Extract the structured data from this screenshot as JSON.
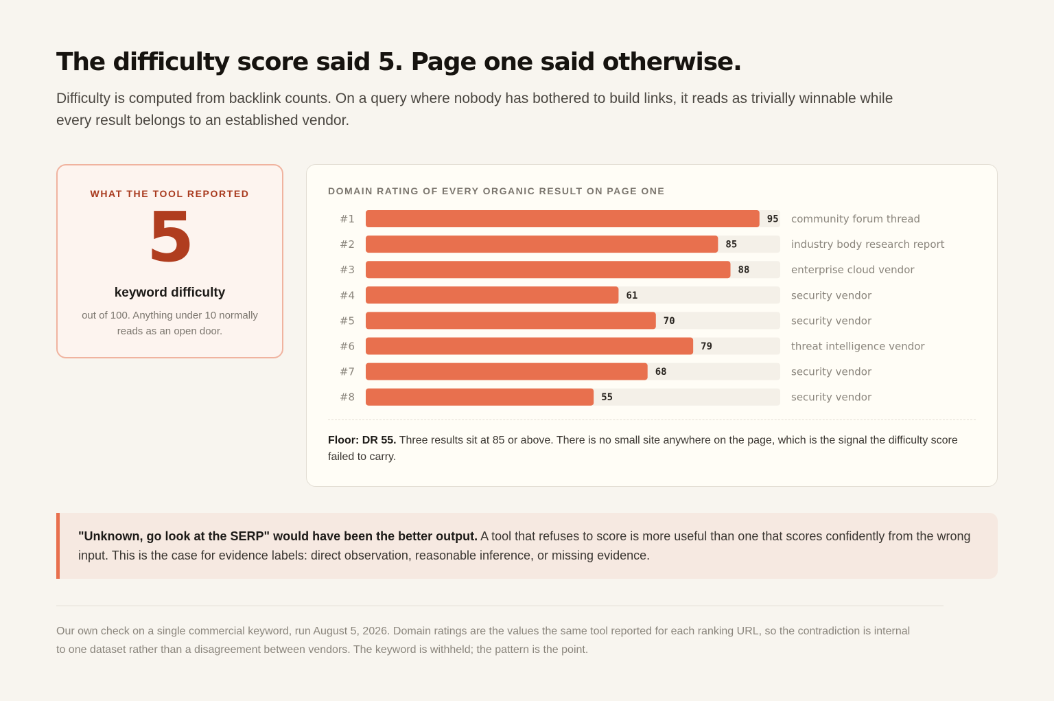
{
  "header": {
    "title": "The difficulty score said 5. Page one said otherwise.",
    "subtitle": "Difficulty is computed from backlink counts. On a query where nobody has bothered to build links, it reads as trivially winnable while every result belongs to an established vendor."
  },
  "tool_card": {
    "kicker": "WHAT THE TOOL REPORTED",
    "score": "5",
    "label": "keyword difficulty",
    "note": "out of 100. Anything under 10 normally reads as an open door."
  },
  "chart_data": {
    "type": "bar",
    "orientation": "horizontal",
    "title": "DOMAIN RATING OF EVERY ORGANIC RESULT ON PAGE ONE",
    "categories": [
      "#1",
      "#2",
      "#3",
      "#4",
      "#5",
      "#6",
      "#7",
      "#8"
    ],
    "values": [
      95,
      85,
      88,
      61,
      70,
      79,
      68,
      55
    ],
    "descriptions": [
      "community forum thread",
      "industry body research report",
      "enterprise cloud vendor",
      "security vendor",
      "security vendor",
      "threat intelligence vendor",
      "security vendor",
      "security vendor"
    ],
    "xlim": [
      0,
      100
    ],
    "grid": false,
    "legend": "none",
    "colors": {
      "bar": "#e8704e",
      "track": "#f4f0e8"
    }
  },
  "chart_note": {
    "lead": "Floor: DR 55.",
    "body": "Three results sit at 85 or above. There is no small site anywhere on the page, which is the signal the difficulty score failed to carry."
  },
  "callout": {
    "lead": "\"Unknown, go look at the SERP\" would have been the better output.",
    "body": "A tool that refuses to score is more useful than one that scores confidently from the wrong input. This is the case for evidence labels: direct observation, reasonable inference, or missing evidence."
  },
  "footer": {
    "note": "Our own check on a single commercial keyword, run August 5, 2026. Domain ratings are the values the same tool reported for each ranking URL, so the contradiction is internal to one dataset rather than a disagreement between vendors. The keyword is withheld; the pattern is the point."
  }
}
